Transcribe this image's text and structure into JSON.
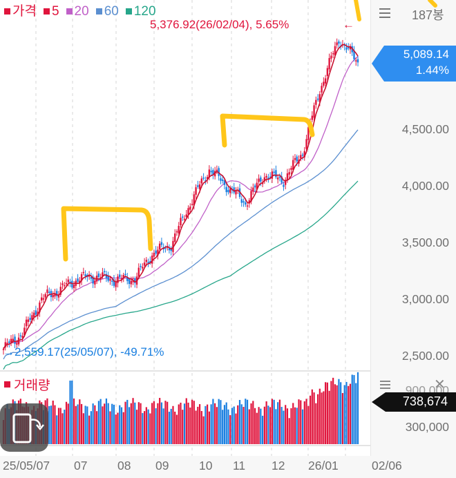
{
  "legend": {
    "items": [
      {
        "label": "가격",
        "color": "#e0143c"
      },
      {
        "label": "5",
        "color": "#e0143c"
      },
      {
        "label": "20",
        "color": "#c060c8"
      },
      {
        "label": "60",
        "color": "#5b8fd0"
      },
      {
        "label": "120",
        "color": "#26a68a"
      }
    ]
  },
  "header": {
    "menu_icon": "hamburger-menu-icon",
    "bar_count": "187봉"
  },
  "annotations": {
    "high": {
      "text": "5,376.92(26/02/04), 5.65%",
      "arrow": "←",
      "color": "#e0143c"
    },
    "low": {
      "text": "2,559.17(25/05/07), -49.71%",
      "arrow": "→",
      "color": "#1a7fe0"
    }
  },
  "current_price": {
    "value": "5,089.14",
    "change": "1.44%",
    "color": "#2f8ef0"
  },
  "y_axis": {
    "labels": [
      "4,500.00",
      "4,000.00",
      "3,500.00",
      "3,000.00",
      "2,500.00"
    ]
  },
  "volume_panel": {
    "title": "거래량",
    "menu_icon": "hamburger-menu-icon",
    "close_icon": "close-icon",
    "axis_top": "900,000",
    "axis_mid": "300,000",
    "current_volume": "738,674"
  },
  "x_axis": {
    "labels": [
      "25/05/07",
      "07",
      "08",
      "09",
      "10",
      "11",
      "12",
      "26/01",
      "02/06"
    ]
  },
  "rotate_button": {
    "icon": "screen-rotate-icon"
  },
  "colors": {
    "up": "#e0143c",
    "down": "#1a7fe0",
    "highlight_marker": "#ffc61a"
  },
  "chart_data": {
    "type": "candlestick",
    "title": "",
    "bars": 187,
    "x_range": [
      "25/05/07",
      "26/02/06"
    ],
    "x_ticks": [
      "25/05/07",
      "07",
      "08",
      "09",
      "10",
      "11",
      "12",
      "26/01",
      "02/06"
    ],
    "y_ticks": [
      2500,
      3000,
      3500,
      4000,
      4500
    ],
    "ylim": [
      2440,
      5500
    ],
    "last_close": 5089.14,
    "last_change_pct": 1.44,
    "period_high": {
      "value": 5376.92,
      "date": "26/02/04",
      "pct_from_last": 5.65
    },
    "period_low": {
      "value": 2559.17,
      "date": "25/05/07",
      "pct_from_last": -49.71
    },
    "moving_averages": [
      "5",
      "20",
      "60",
      "120"
    ],
    "close_series_approx": [
      {
        "x": "25/05/07",
        "y": 2560
      },
      {
        "x": "25/06/01",
        "y": 2700
      },
      {
        "x": "25/06/20",
        "y": 3000
      },
      {
        "x": "25/07/01",
        "y": 3080
      },
      {
        "x": "25/07/15",
        "y": 3180
      },
      {
        "x": "25/08/01",
        "y": 3200
      },
      {
        "x": "25/08/15",
        "y": 3170
      },
      {
        "x": "25/09/01",
        "y": 3180
      },
      {
        "x": "25/09/15",
        "y": 3400
      },
      {
        "x": "25/10/01",
        "y": 3480
      },
      {
        "x": "25/10/20",
        "y": 3850
      },
      {
        "x": "25/11/03",
        "y": 4150
      },
      {
        "x": "25/11/15",
        "y": 4000
      },
      {
        "x": "25/11/25",
        "y": 3850
      },
      {
        "x": "25/12/10",
        "y": 4100
      },
      {
        "x": "25/12/25",
        "y": 4050
      },
      {
        "x": "26/01/05",
        "y": 4300
      },
      {
        "x": "26/01/20",
        "y": 4850
      },
      {
        "x": "26/02/04",
        "y": 5300
      },
      {
        "x": "26/02/06",
        "y": 5089
      }
    ],
    "volume": {
      "ylabel": "거래량",
      "y_ticks": [
        300000,
        900000
      ],
      "last_value": 738674
    },
    "annotations": [
      "yellow hand-drawn bracket over 25/07–25/08 consolidation",
      "yellow hand-drawn bracket over 25/11–25/12 consolidation"
    ]
  }
}
